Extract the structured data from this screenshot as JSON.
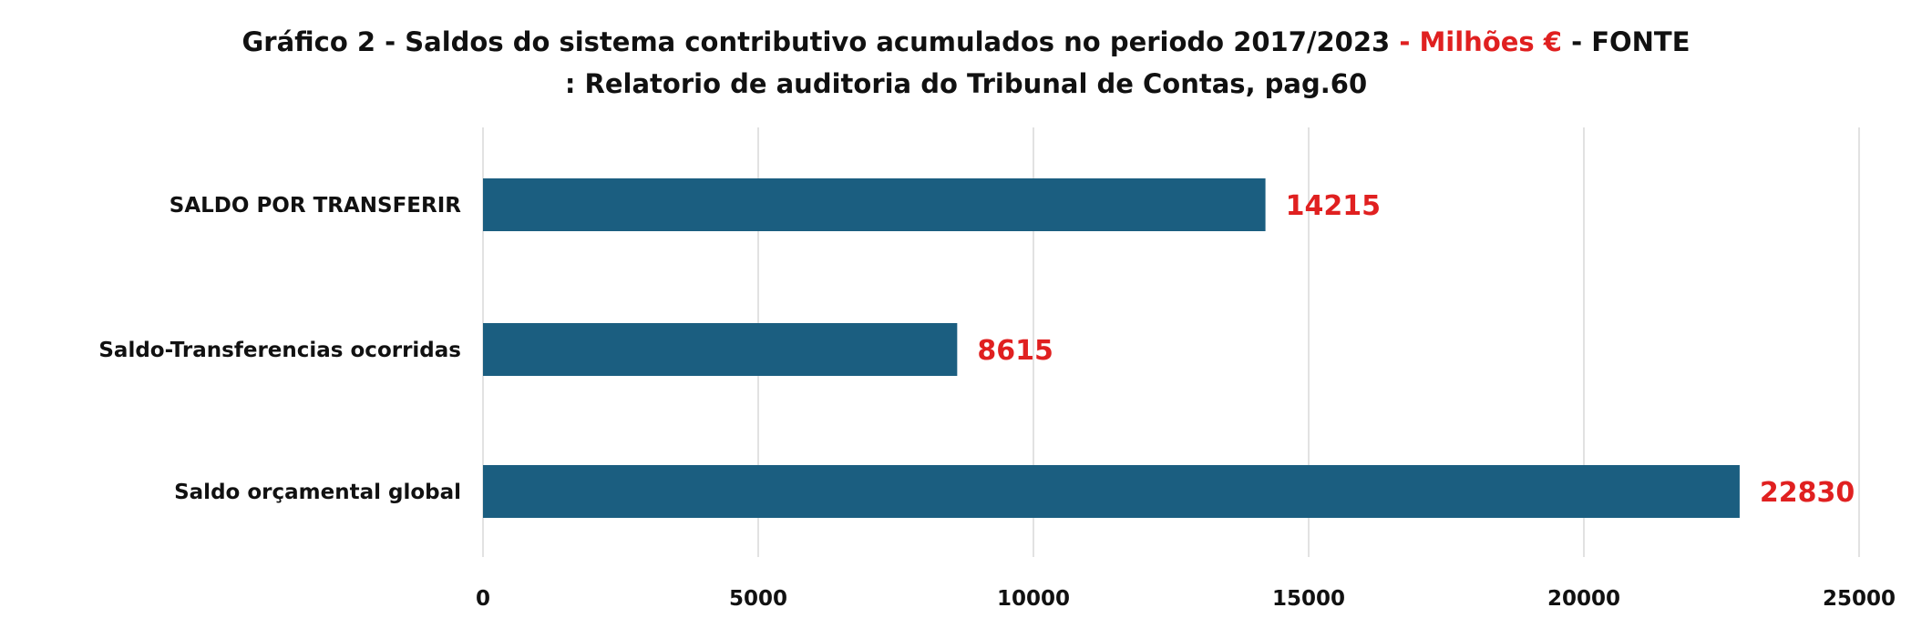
{
  "title": {
    "line1_part1": "Gráfico 2 -  Saldos do sistema contributivo acumulados no periodo 2017/2023 ",
    "line1_accent": "- Milhões €",
    "line1_part2": " - FONTE",
    "line2": ": Relatorio de auditoria do Tribunal de Contas, pag.60"
  },
  "colors": {
    "bar": "#1b5e80",
    "data_label": "#e02020",
    "title_accent": "#e02020",
    "gridline": "#d9d9d9"
  },
  "chart_data": {
    "type": "bar",
    "orientation": "horizontal",
    "categories": [
      "SALDO POR TRANSFERIR",
      "Saldo-Transferencias ocorridas",
      "Saldo orçamental global"
    ],
    "values": [
      14215,
      8615,
      22830
    ],
    "data_labels": [
      "14215",
      "8615",
      "22830"
    ],
    "xlim": [
      0,
      25000
    ],
    "xticks": [
      0,
      5000,
      10000,
      15000,
      20000,
      25000
    ],
    "xtick_labels": [
      "0",
      "5000",
      "10000",
      "15000",
      "20000",
      "25000"
    ],
    "grid": true,
    "legend": "none"
  }
}
